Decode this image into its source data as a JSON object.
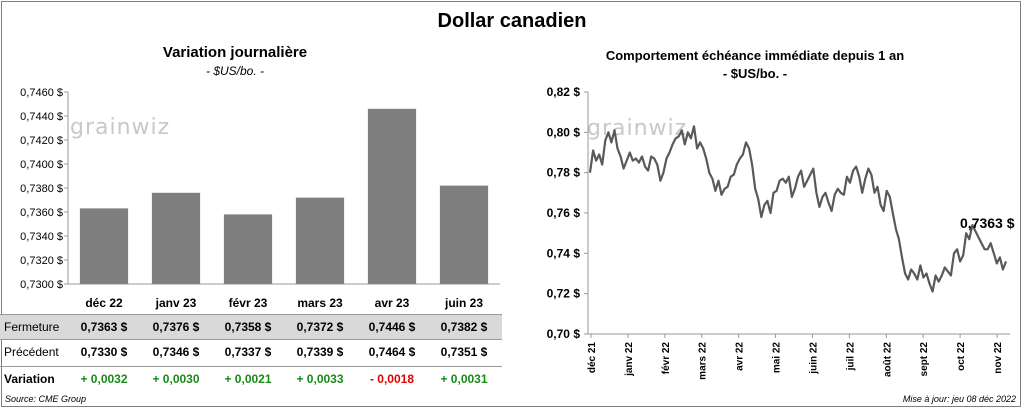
{
  "title": "Dollar canadien",
  "left": {
    "title": "Variation  journalière",
    "unit": "- $US/bo. -",
    "watermark": "grainwiz"
  },
  "right": {
    "title": "Comportement échéance immédiate depuis 1 an",
    "unit": "- $US/bo. -",
    "watermark": "grainwiz",
    "last_label": "0,7363 $"
  },
  "table": {
    "rows": [
      {
        "label": "Fermeture",
        "values": [
          "0,7363  $",
          "0,7376  $",
          "0,7358  $",
          "0,7372  $",
          "0,7446  $",
          "0,7382  $"
        ]
      },
      {
        "label": "Précédent",
        "values": [
          "0,7330  $",
          "0,7346  $",
          "0,7337  $",
          "0,7339  $",
          "0,7464  $",
          "0,7351  $"
        ]
      },
      {
        "label": "Variation",
        "values": [
          "+ 0,0032",
          "+ 0,0030",
          "+ 0,0021",
          "+ 0,0033",
          "- 0,0018",
          "+ 0,0031"
        ]
      }
    ],
    "variation_colors": [
      "#1a8a1a",
      "#1a8a1a",
      "#1a8a1a",
      "#1a8a1a",
      "#e00000",
      "#1a8a1a"
    ]
  },
  "footer": {
    "source": "Source: CME Group",
    "updated": "Mise à jour: jeu 08 déc 2022"
  },
  "chart_data": [
    {
      "type": "bar",
      "title": "Variation  journalière",
      "categories": [
        "déc 22",
        "janv 23",
        "févr 23",
        "mars 23",
        "avr 23",
        "juin 23"
      ],
      "values": [
        0.7363,
        0.7376,
        0.7358,
        0.7372,
        0.7446,
        0.7382
      ],
      "ylim": [
        0.73,
        0.746
      ],
      "yticks": [
        "0,7300 $",
        "0,7320 $",
        "0,7340 $",
        "0,7360 $",
        "0,7380 $",
        "0,7400 $",
        "0,7420 $",
        "0,7440 $",
        "0,7460 $"
      ],
      "bar_color": "#7f7f7f"
    },
    {
      "type": "line",
      "title": "Comportement échéance immédiate depuis 1 an",
      "xlabels": [
        "déc 21",
        "janv 22",
        "févr 22",
        "mars 22",
        "avr 22",
        "mai 22",
        "juin 22",
        "juil 22",
        "août 22",
        "sept 22",
        "oct 22",
        "nov 22"
      ],
      "ylim": [
        0.7,
        0.82
      ],
      "yticks": [
        "0,70 $",
        "0,72 $",
        "0,74 $",
        "0,76 $",
        "0,78 $",
        "0,80 $",
        "0,82 $"
      ],
      "line_color": "#595959",
      "y": [
        0.78,
        0.791,
        0.786,
        0.789,
        0.784,
        0.796,
        0.8,
        0.795,
        0.801,
        0.792,
        0.788,
        0.782,
        0.786,
        0.79,
        0.786,
        0.787,
        0.785,
        0.788,
        0.783,
        0.781,
        0.788,
        0.787,
        0.784,
        0.776,
        0.78,
        0.787,
        0.79,
        0.794,
        0.797,
        0.798,
        0.801,
        0.794,
        0.8,
        0.797,
        0.803,
        0.792,
        0.795,
        0.792,
        0.787,
        0.78,
        0.777,
        0.771,
        0.776,
        0.769,
        0.772,
        0.773,
        0.778,
        0.779,
        0.784,
        0.787,
        0.789,
        0.795,
        0.792,
        0.784,
        0.772,
        0.767,
        0.758,
        0.764,
        0.766,
        0.76,
        0.77,
        0.771,
        0.776,
        0.777,
        0.775,
        0.778,
        0.768,
        0.772,
        0.778,
        0.781,
        0.773,
        0.776,
        0.779,
        0.782,
        0.77,
        0.763,
        0.768,
        0.77,
        0.765,
        0.761,
        0.769,
        0.772,
        0.77,
        0.769,
        0.778,
        0.775,
        0.781,
        0.783,
        0.778,
        0.77,
        0.777,
        0.782,
        0.779,
        0.77,
        0.773,
        0.764,
        0.761,
        0.771,
        0.768,
        0.76,
        0.752,
        0.747,
        0.738,
        0.73,
        0.727,
        0.732,
        0.73,
        0.727,
        0.734,
        0.728,
        0.73,
        0.725,
        0.721,
        0.729,
        0.726,
        0.729,
        0.733,
        0.731,
        0.729,
        0.74,
        0.742,
        0.736,
        0.739,
        0.75,
        0.747,
        0.754,
        0.751,
        0.748,
        0.745,
        0.742,
        0.742,
        0.745,
        0.74,
        0.735,
        0.738,
        0.732,
        0.736
      ]
    }
  ]
}
